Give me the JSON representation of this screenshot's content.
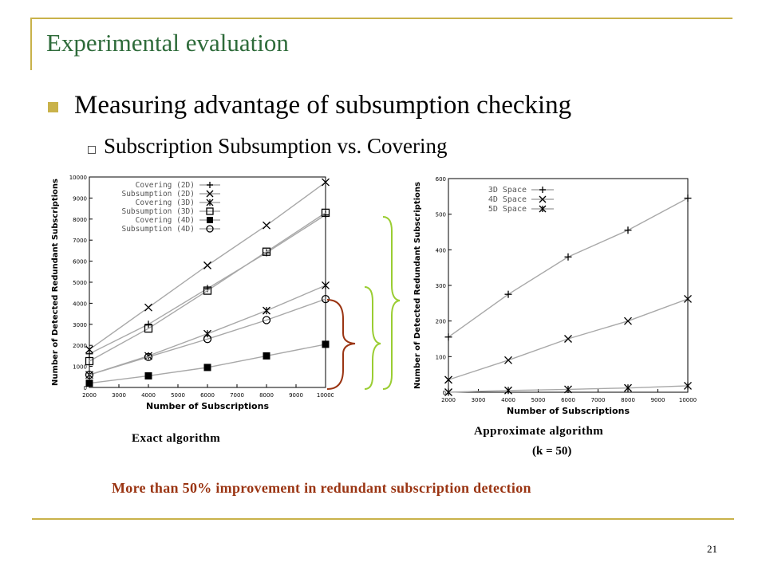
{
  "slide": {
    "title": "Experimental evaluation",
    "bullet_1": "Measuring advantage of subsumption checking",
    "bullet_2": "Subscription Subsumption vs. Covering",
    "caption_left": "Exact algorithm",
    "caption_right_line1": "Approximate algorithm",
    "caption_right_line2": "(k = 50)",
    "conclusion": "More than 50% improvement in redundant subscription detection",
    "page_number": "21"
  },
  "colors": {
    "title": "#2e6b3a",
    "rule": "#c9b24a",
    "conclusion": "#9a3412",
    "brace_brown": "#9a3412",
    "brace_green": "#9acd32",
    "series_line": "#a8a8a8"
  },
  "chart_data": [
    {
      "type": "line",
      "xlabel": "Number of Subscriptions",
      "ylabel": "Number of Detected Redundant Subscriptions",
      "xlim": [
        2000,
        10000
      ],
      "ylim": [
        0,
        10000
      ],
      "x_ticks": [
        2000,
        3000,
        4000,
        5000,
        6000,
        7000,
        8000,
        9000,
        10000
      ],
      "y_ticks": [
        0,
        1000,
        2000,
        3000,
        4000,
        5000,
        6000,
        7000,
        8000,
        9000,
        10000
      ],
      "legend_position": "top-left",
      "x": [
        2000,
        4000,
        6000,
        8000,
        10000
      ],
      "series": [
        {
          "name": "Covering (2D)",
          "marker": "plus",
          "values": [
            1600,
            3000,
            4700,
            6400,
            8200
          ]
        },
        {
          "name": "Subsumption (2D)",
          "marker": "x",
          "values": [
            1800,
            3800,
            5800,
            7700,
            9750
          ]
        },
        {
          "name": "Covering (3D)",
          "marker": "star",
          "values": [
            600,
            1500,
            2550,
            3650,
            4850
          ]
        },
        {
          "name": "Subsumption (3D)",
          "marker": "square-open",
          "values": [
            1250,
            2800,
            4600,
            6450,
            8300
          ]
        },
        {
          "name": "Covering (4D)",
          "marker": "square-filled",
          "values": [
            200,
            550,
            950,
            1500,
            2050
          ]
        },
        {
          "name": "Subsumption (4D)",
          "marker": "circle-open",
          "values": [
            600,
            1450,
            2300,
            3200,
            4200
          ]
        }
      ]
    },
    {
      "type": "line",
      "xlabel": "Number of Subscriptions",
      "ylabel": "Number of Detected Redundant Subscriptions",
      "xlim": [
        2000,
        10000
      ],
      "ylim": [
        0,
        600
      ],
      "x_ticks": [
        2000,
        3000,
        4000,
        5000,
        6000,
        7000,
        8000,
        9000,
        10000
      ],
      "y_ticks": [
        0,
        100,
        200,
        300,
        400,
        500,
        600
      ],
      "legend_position": "top-left",
      "x": [
        2000,
        4000,
        6000,
        8000,
        10000
      ],
      "series": [
        {
          "name": "3D Space",
          "marker": "plus",
          "values": [
            155,
            275,
            380,
            455,
            545
          ]
        },
        {
          "name": "4D Space",
          "marker": "x",
          "values": [
            35,
            90,
            150,
            200,
            262
          ]
        },
        {
          "name": "5D Space",
          "marker": "star",
          "values": [
            0,
            5,
            8,
            12,
            18
          ]
        }
      ]
    }
  ]
}
